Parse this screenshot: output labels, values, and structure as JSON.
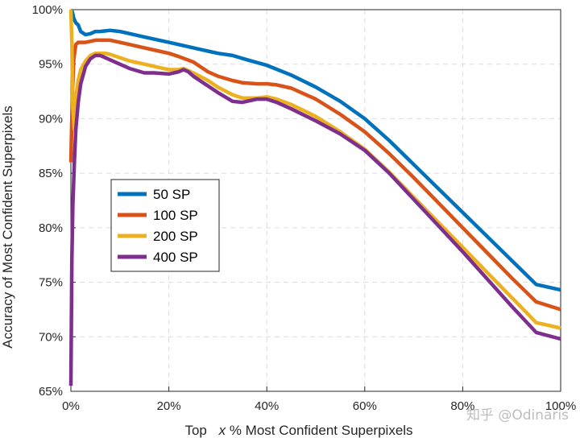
{
  "watermark": "知乎 @Odinaris",
  "chart_data": {
    "type": "line",
    "title": "",
    "xlabel_prefix": "Top",
    "xlabel_var": "x",
    "xlabel_suffix": "% Most Confident Superpixels",
    "ylabel": "Accuracy of Most Confident Superpixels",
    "xlim": [
      0,
      100
    ],
    "ylim": [
      65,
      100
    ],
    "xticks": [
      0,
      20,
      40,
      60,
      80,
      100
    ],
    "xtick_labels": [
      "0%",
      "20%",
      "40%",
      "60%",
      "80%",
      "100%"
    ],
    "yticks": [
      65,
      70,
      75,
      80,
      85,
      90,
      95,
      100
    ],
    "ytick_labels": [
      "65%",
      "70%",
      "75%",
      "80%",
      "85%",
      "90%",
      "95%",
      "100%"
    ],
    "grid": true,
    "legend_position": "middle-left",
    "series": [
      {
        "name": "50 SP",
        "color": "#0072BD",
        "x": [
          0,
          0.3,
          0.6,
          1,
          1.5,
          2,
          3,
          4,
          5,
          6,
          8,
          10,
          12,
          15,
          18,
          20,
          22,
          25,
          28,
          30,
          33,
          36,
          40,
          45,
          50,
          55,
          60,
          65,
          70,
          75,
          80,
          85,
          90,
          95,
          100
        ],
        "y": [
          100,
          99.8,
          99.2,
          98.8,
          98.6,
          98.0,
          97.7,
          97.8,
          98.0,
          98.0,
          98.1,
          98.0,
          97.8,
          97.5,
          97.2,
          97.0,
          96.8,
          96.5,
          96.2,
          96.0,
          95.8,
          95.4,
          94.9,
          94.0,
          92.9,
          91.6,
          90.0,
          88.0,
          85.8,
          83.6,
          81.4,
          79.2,
          77.0,
          74.8,
          74.3
        ]
      },
      {
        "name": "100 SP",
        "color": "#D95319",
        "x": [
          0,
          0.3,
          0.6,
          1,
          1.5,
          2,
          3,
          4,
          5,
          6,
          8,
          10,
          12,
          15,
          18,
          20,
          22,
          25,
          28,
          30,
          33,
          35,
          38,
          40,
          42,
          45,
          50,
          55,
          60,
          65,
          70,
          75,
          80,
          85,
          90,
          95,
          100
        ],
        "y": [
          86,
          92,
          95.5,
          96.8,
          97.0,
          97.0,
          97.0,
          97.1,
          97.2,
          97.2,
          97.2,
          97.0,
          96.8,
          96.5,
          96.2,
          96.0,
          95.7,
          95.2,
          94.3,
          93.9,
          93.5,
          93.3,
          93.2,
          93.2,
          93.1,
          92.8,
          91.8,
          90.4,
          88.8,
          86.8,
          84.6,
          82.3,
          80.0,
          77.7,
          75.4,
          73.2,
          72.5
        ]
      },
      {
        "name": "200 SP",
        "color": "#EDB120",
        "x": [
          0,
          0.2,
          0.4,
          0.7,
          1,
          1.5,
          2,
          3,
          4,
          5,
          6,
          7,
          8,
          10,
          12,
          15,
          18,
          20,
          22,
          23,
          25,
          28,
          30,
          33,
          35,
          38,
          40,
          42,
          45,
          50,
          55,
          60,
          65,
          70,
          75,
          80,
          85,
          90,
          95,
          100
        ],
        "y": [
          100,
          97,
          91,
          89,
          92,
          93.5,
          94.5,
          95.3,
          95.8,
          96.0,
          96.0,
          96.0,
          95.9,
          95.6,
          95.3,
          95.0,
          94.7,
          94.5,
          94.5,
          94.6,
          94.2,
          93.5,
          92.9,
          92.2,
          91.9,
          91.9,
          92.0,
          91.8,
          91.3,
          90.2,
          88.8,
          87.2,
          85.1,
          82.8,
          80.5,
          78.2,
          75.9,
          73.6,
          71.3,
          70.8
        ]
      },
      {
        "name": "400 SP",
        "color": "#7E2F8E",
        "x": [
          0,
          0.2,
          0.4,
          0.7,
          1,
          1.5,
          2,
          3,
          4,
          5,
          6,
          8,
          10,
          12,
          15,
          17,
          20,
          22,
          23,
          24,
          25,
          28,
          30,
          33,
          35,
          38,
          40,
          42,
          45,
          50,
          55,
          60,
          65,
          70,
          75,
          80,
          85,
          90,
          95,
          100
        ],
        "y": [
          65.5,
          77,
          82,
          86,
          89,
          91.5,
          93.2,
          94.8,
          95.5,
          95.8,
          95.8,
          95.4,
          95.0,
          94.6,
          94.2,
          94.2,
          94.1,
          94.3,
          94.5,
          94.3,
          93.9,
          93.0,
          92.4,
          91.6,
          91.5,
          91.8,
          91.8,
          91.5,
          90.9,
          89.8,
          88.6,
          87.1,
          85.0,
          82.6,
          80.2,
          77.8,
          75.3,
          72.8,
          70.4,
          69.8
        ]
      }
    ]
  }
}
